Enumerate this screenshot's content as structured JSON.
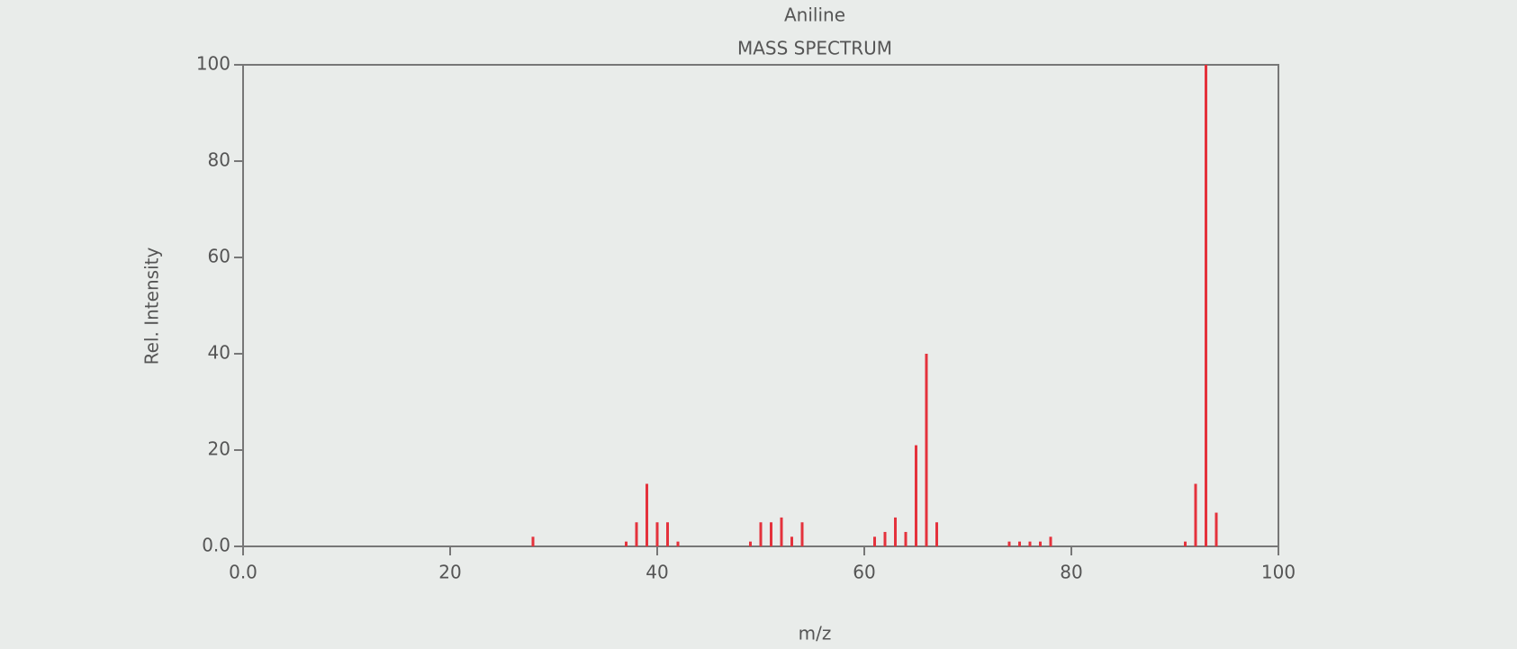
{
  "chart_data": {
    "type": "bar",
    "title": "Aniline",
    "subtitle": "MASS SPECTRUM",
    "x_label": "m/z",
    "y_label": "Rel. Intensity",
    "x": [
      28,
      37,
      38,
      39,
      40,
      41,
      42,
      49,
      50,
      51,
      52,
      53,
      54,
      61,
      62,
      63,
      64,
      65,
      66,
      67,
      74,
      75,
      76,
      77,
      78,
      91,
      92,
      93,
      94
    ],
    "values": [
      2,
      1,
      5,
      13,
      5,
      5,
      1,
      1,
      5,
      5,
      6,
      2,
      5,
      2,
      3,
      6,
      3,
      21,
      40,
      5,
      1,
      1,
      1,
      1,
      2,
      1,
      13,
      100,
      7
    ],
    "color": "#e4323c",
    "xlim": [
      0,
      100
    ],
    "ylim": [
      0,
      100
    ],
    "xticks": [
      {
        "value": 0,
        "label": "0.0"
      },
      20,
      40,
      60,
      80,
      100
    ],
    "yticks": [
      {
        "value": 0,
        "label": "0.0"
      },
      20,
      40,
      60,
      80,
      100
    ]
  }
}
